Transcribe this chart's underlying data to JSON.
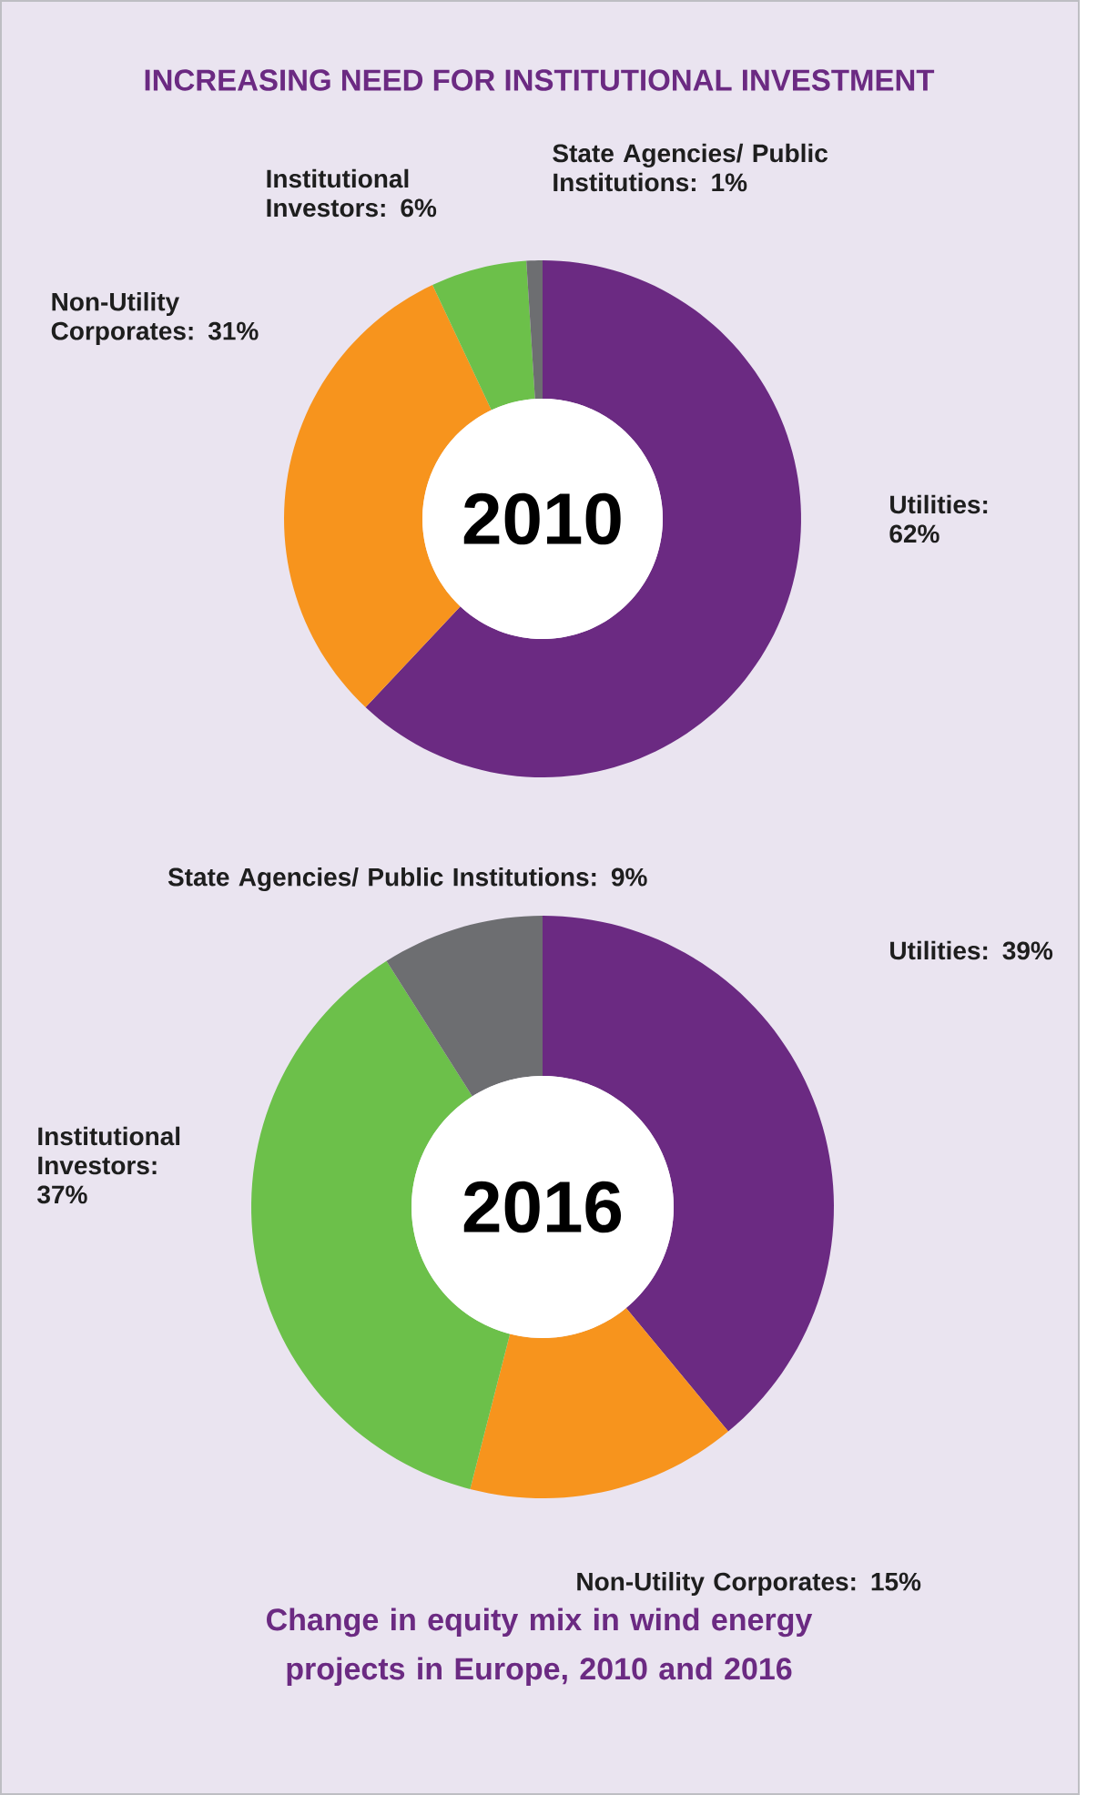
{
  "chart_data": [
    {
      "type": "donut",
      "title": "INCREASING NEED FOR INSTITUTIONAL INVESTMENT",
      "categories": [
        "Utilities",
        "Non-Utility Corporates",
        "Institutional Investors",
        "State Agencies/ Public Institutions"
      ],
      "values": [
        62,
        31,
        6,
        1
      ],
      "value_labels": [
        ": 62%",
        ": 31%",
        ": 6%",
        ": 1%"
      ],
      "colors": [
        "#6b2a82",
        "#f7941d",
        "#6cc04a",
        "#6d6e71"
      ],
      "annotations": [
        "2010"
      ]
    },
    {
      "type": "donut",
      "categories": [
        "Utilities",
        "Non-Utility Corporates",
        "Institutional Investors",
        "State Agencies/ Public Institutions"
      ],
      "values": [
        39,
        15,
        37,
        9
      ],
      "value_labels": [
        ": 39%",
        ": 15%",
        ": 37%",
        ": 9%"
      ],
      "colors": [
        "#6b2a82",
        "#f7941d",
        "#6cc04a",
        "#6d6e71"
      ],
      "annotations": [
        "2016",
        "Change in equity mix in wind energy projects in Europe, 2010 and 2016"
      ]
    }
  ]
}
